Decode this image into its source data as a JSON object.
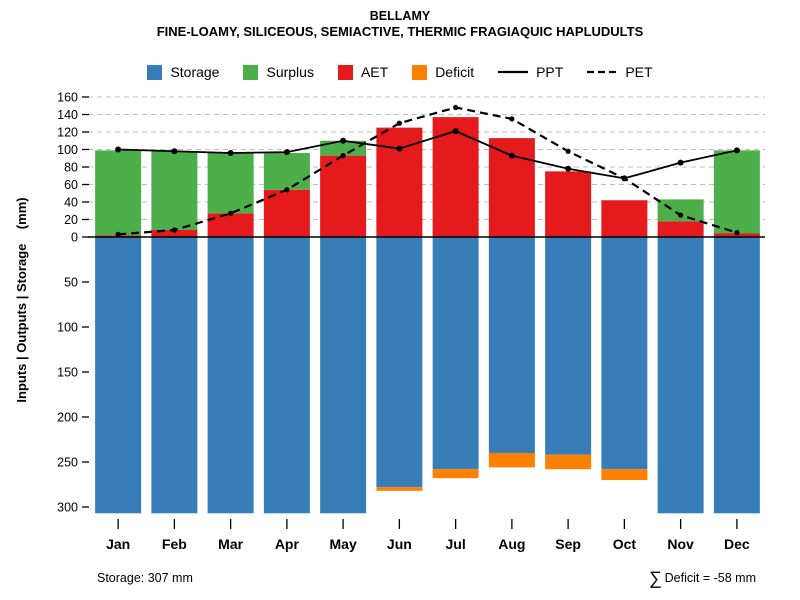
{
  "header": {
    "title": "BELLAMY",
    "subtitle": "FINE-LOAMY, SILICEOUS, SEMIACTIVE, THERMIC FRAGIAQUIC HAPLUDULTS"
  },
  "legend": [
    {
      "label": "Storage",
      "type": "box",
      "color": "#377EB8"
    },
    {
      "label": "Surplus",
      "type": "box",
      "color": "#4DAF4A"
    },
    {
      "label": "AET",
      "type": "box",
      "color": "#E41A1C"
    },
    {
      "label": "Deficit",
      "type": "box",
      "color": "#FF7F00"
    },
    {
      "label": "PPT",
      "type": "line-solid",
      "color": "#000000"
    },
    {
      "label": "PET",
      "type": "line-dashed",
      "color": "#000000"
    }
  ],
  "chart_data": {
    "type": "bar",
    "categories": [
      "Jan",
      "Feb",
      "Mar",
      "Apr",
      "May",
      "Jun",
      "Jul",
      "Aug",
      "Sep",
      "Oct",
      "Nov",
      "Dec"
    ],
    "series": [
      {
        "name": "AET",
        "kind": "bar-up",
        "color": "#E41A1C",
        "values": [
          2,
          8,
          27,
          54,
          93,
          125,
          137,
          113,
          75,
          42,
          18,
          4
        ]
      },
      {
        "name": "Surplus",
        "kind": "bar-up-stacked",
        "color": "#4DAF4A",
        "values": [
          97,
          90,
          69,
          42,
          17,
          0,
          0,
          0,
          0,
          0,
          25,
          95
        ]
      },
      {
        "name": "Storage",
        "kind": "bar-down",
        "color": "#377EB8",
        "values": [
          307,
          307,
          307,
          307,
          307,
          278,
          258,
          240,
          242,
          258,
          307,
          307
        ]
      },
      {
        "name": "Deficit",
        "kind": "bar-down-stacked",
        "color": "#FF7F00",
        "values": [
          0,
          0,
          0,
          0,
          0,
          4,
          10,
          16,
          16,
          12,
          0,
          0
        ]
      },
      {
        "name": "PPT",
        "kind": "line-solid",
        "color": "#000000",
        "values": [
          100,
          98,
          96,
          97,
          110,
          101,
          121,
          93,
          78,
          67,
          85,
          99
        ]
      },
      {
        "name": "PET",
        "kind": "line-dashed",
        "color": "#000000",
        "values": [
          3,
          8,
          27,
          54,
          93,
          130,
          148,
          135,
          98,
          67,
          25,
          5
        ]
      }
    ],
    "ylabel": "Inputs | Outputs | Storage    (mm)",
    "xlabel": "",
    "upper_ticks": [
      0,
      20,
      40,
      60,
      80,
      100,
      120,
      140,
      160
    ],
    "lower_ticks": [
      50,
      100,
      150,
      200,
      250,
      300
    ],
    "upper_ylim": [
      0,
      160
    ],
    "lower_ylim": [
      0,
      310
    ],
    "grid": "dashed horizontal gridlines in upper region only",
    "legend_position": "top center",
    "colors": {
      "storage": "#377EB8",
      "surplus": "#4DAF4A",
      "aet": "#E41A1C",
      "deficit": "#FF7F00",
      "lines": "#000000",
      "gridline": "#BEBEBE"
    }
  },
  "footer": {
    "storage_note": "Storage: 307 mm",
    "sigma": "∑",
    "deficit_note": "Deficit = -58 mm"
  }
}
